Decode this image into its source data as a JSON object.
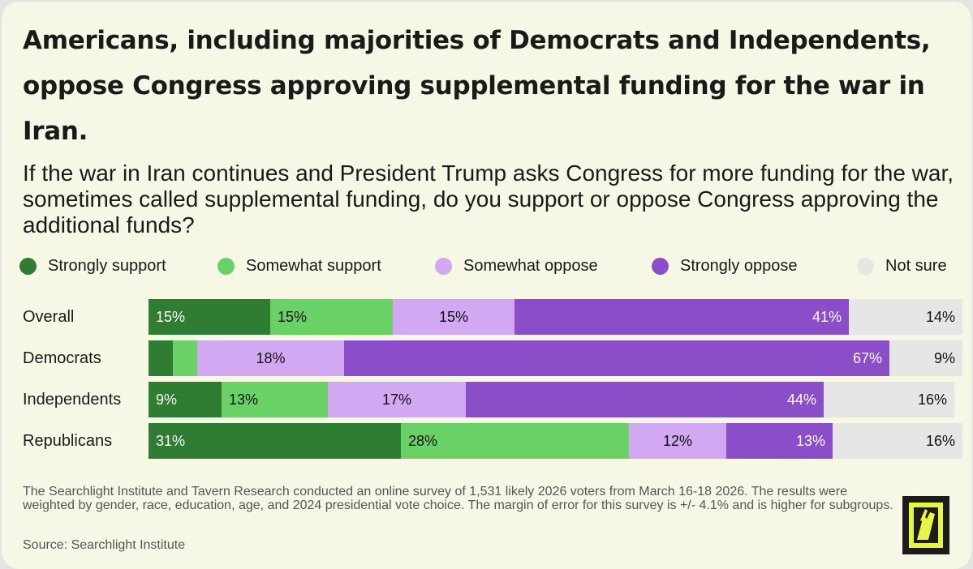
{
  "header": {
    "title": "Americans, including majorities of Democrats and Independents, oppose Congress approving supplemental funding for the war in Iran.",
    "subtitle": "If the war in Iran continues and President Trump asks Congress for more funding for the war, sometimes called supplemental funding, do you support or oppose Congress approving the additional funds?"
  },
  "colors": {
    "strongly_support": "#2e7d32",
    "somewhat_support": "#6ad167",
    "somewhat_oppose": "#d2a8f3",
    "strongly_oppose": "#8c4ec8",
    "not_sure": "#e6e6e6"
  },
  "chart_data": {
    "type": "bar",
    "orientation": "horizontal",
    "stacked": true,
    "title": "Americans, including majorities of Democrats and Independents, oppose Congress approving supplemental funding for the war in Iran.",
    "categories": [
      "Overall",
      "Democrats",
      "Independents",
      "Republicans"
    ],
    "series": [
      {
        "name": "Strongly support",
        "values": [
          15,
          3,
          9,
          31
        ],
        "labels": [
          "15%",
          "",
          "9%",
          "31%"
        ]
      },
      {
        "name": "Somewhat support",
        "values": [
          15,
          3,
          13,
          28
        ],
        "labels": [
          "15%",
          "",
          "13%",
          "28%"
        ]
      },
      {
        "name": "Somewhat oppose",
        "values": [
          15,
          18,
          17,
          12
        ],
        "labels": [
          "15%",
          "18%",
          "17%",
          "12%"
        ]
      },
      {
        "name": "Strongly oppose",
        "values": [
          41,
          67,
          44,
          13
        ],
        "labels": [
          "41%",
          "67%",
          "44%",
          "13%"
        ]
      },
      {
        "name": "Not sure",
        "values": [
          14,
          9,
          16,
          16
        ],
        "labels": [
          "14%",
          "9%",
          "16%",
          "16%"
        ]
      }
    ],
    "xlim": [
      0,
      100
    ],
    "legend": "top",
    "unit": "%"
  },
  "footer": {
    "footnote": "The Searchlight Institute and Tavern Research conducted an online survey of 1,531 likely 2026 voters from March 16-18 2026. The results were weighted by gender, race, education, age, and 2024 presidential vote choice. The margin of error for this survey is +/- 4.1% and is higher for subgroups.",
    "source": "Source: Searchlight Institute"
  }
}
